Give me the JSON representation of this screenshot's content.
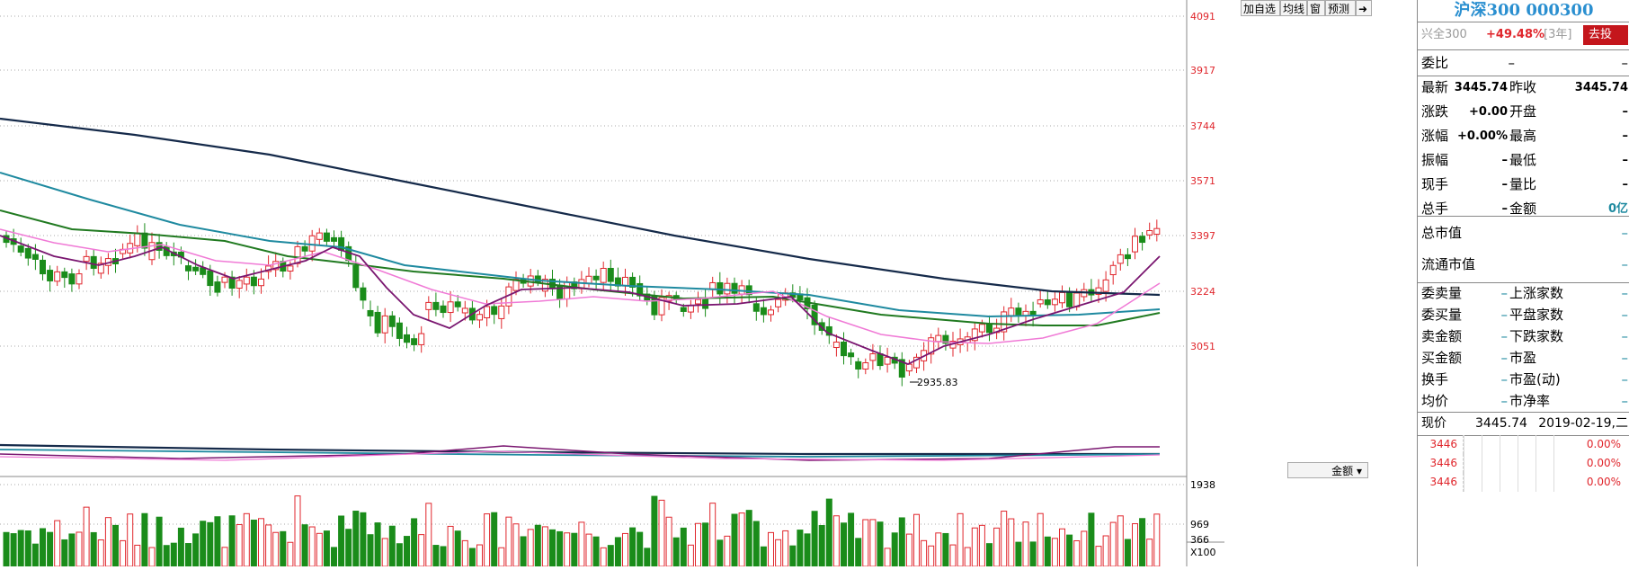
{
  "toolbar": {
    "add": "加自选",
    "ma": "均线",
    "win": "窗",
    "forecast": "预测",
    "arrow": "➜"
  },
  "price_axis": {
    "ticks": [
      "4091",
      "3917",
      "3744",
      "3571",
      "3397",
      "3224",
      "3051"
    ]
  },
  "annotations": {
    "low": "2935.83"
  },
  "volume": {
    "selector": "金额",
    "ticks": [
      "1938",
      "969",
      "366"
    ],
    "unit": "X100"
  },
  "panel": {
    "title": "沪深300 000300",
    "fund": {
      "name": "兴全300",
      "return": "+49.48%",
      "period": "[3年]",
      "invest_button": "去投资"
    },
    "weibi": {
      "label": "委比",
      "v1": "–",
      "v2": "–"
    },
    "quotes": [
      {
        "l1": "最新",
        "v1": "3445.74",
        "l2": "昨收",
        "v2": "3445.74"
      },
      {
        "l1": "涨跌",
        "v1": "+0.00",
        "l2": "开盘",
        "v2": "–"
      },
      {
        "l1": "涨幅",
        "v1": "+0.00%",
        "l2": "最高",
        "v2": "–"
      },
      {
        "l1": "振幅",
        "v1": "–",
        "l2": "最低",
        "v2": "–"
      },
      {
        "l1": "现手",
        "v1": "–",
        "l2": "量比",
        "v2": "–"
      },
      {
        "l1": "总手",
        "v1": "–",
        "l2": "金额",
        "v2": "0亿"
      }
    ],
    "market_cap": [
      {
        "label": "总市值",
        "value": "–"
      },
      {
        "label": "流通市值",
        "value": "–"
      }
    ],
    "stats": [
      {
        "l1": "委卖量",
        "v1": "–",
        "l2": "上涨家数",
        "v2": "–"
      },
      {
        "l1": "委买量",
        "v1": "–",
        "l2": "平盘家数",
        "v2": "–"
      },
      {
        "l1": "卖金额",
        "v1": "–",
        "l2": "下跌家数",
        "v2": "–"
      },
      {
        "l1": "买金额",
        "v1": "–",
        "l2": "市盈",
        "v2": "–"
      },
      {
        "l1": "换手",
        "v1": "–",
        "l2": "市盈(动)",
        "v2": "–"
      },
      {
        "l1": "均价",
        "v1": "–",
        "l2": "市净率",
        "v2": "–"
      }
    ],
    "tick": {
      "label": "现价",
      "price": "3445.74",
      "date": "2019-02-19,二"
    },
    "ticks": [
      {
        "price": "3446",
        "pct": "0.00%"
      },
      {
        "price": "3446",
        "pct": "0.00%"
      },
      {
        "price": "3446",
        "pct": "0.00%"
      }
    ]
  },
  "colors": {
    "up": "#e0262c",
    "down": "#1a8c1a",
    "ma_long": "#152a4a",
    "ma_teal": "#1f8aa0",
    "ma_green": "#217a21",
    "ma_pink": "#f07ad6",
    "ma_purple": "#7a1670"
  }
}
